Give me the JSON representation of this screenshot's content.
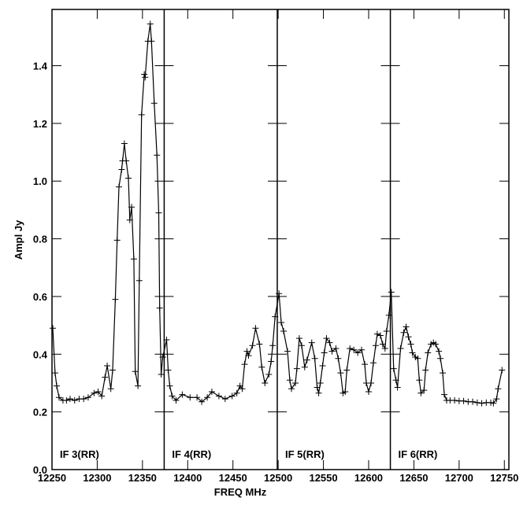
{
  "chart_data": {
    "type": "line",
    "title": "",
    "xlabel": "FREQ MHz",
    "ylabel": "Ampl Jy",
    "xlim": [
      12250,
      12755
    ],
    "ylim": [
      0,
      1.595
    ],
    "xticks": [
      12250,
      12300,
      12350,
      12400,
      12450,
      12500,
      12550,
      12600,
      12650,
      12700,
      12750
    ],
    "xtick_labels": [
      "12250",
      "12300",
      "12350",
      "12400",
      "12450",
      "12500",
      "12550",
      "12600",
      "12650",
      "12700",
      "12750"
    ],
    "yticks": [
      0,
      0.2,
      0.4,
      0.6,
      0.8,
      1.0,
      1.2,
      1.4
    ],
    "ytick_labels": [
      "0.0",
      "0.2",
      "0.4",
      "0.6",
      "0.8",
      "1.0",
      "1.2",
      "1.4"
    ],
    "grid": false,
    "panel_boundaries": [
      12374,
      12499,
      12624
    ],
    "panels": [
      {
        "label": "IF 3(RR)",
        "start": 12250
      },
      {
        "label": "IF 4(RR)",
        "start": 12374
      },
      {
        "label": "IF 5(RR)",
        "start": 12499
      },
      {
        "label": "IF 6(RR)",
        "start": 12624
      }
    ],
    "series": [
      {
        "name": "RR",
        "x": [
          12250.9,
          12253.4,
          12255.2,
          12257.8,
          12262.1,
          12266,
          12270,
          12275,
          12280,
          12285,
          12290,
          12296.5,
          12301,
          12305,
          12308.6,
          12311,
          12315,
          12317,
          12320,
          12322,
          12324,
          12327,
          12328,
          12330,
          12332,
          12334.5,
          12336,
          12338,
          12340.5,
          12342,
          12345,
          12346.5,
          12349,
          12352,
          12353,
          12356,
          12358.6,
          12360,
          12363,
          12366,
          12368,
          12369,
          12370.7,
          12372.4,
          12376.7,
          12378.4,
          12380.2,
          12382.8,
          12387.1,
          12394.0,
          12402.6,
          12410.3,
          12415.5,
          12421.6,
          12426.7,
          12434.5,
          12441.4,
          12449.1,
          12454.3,
          12457.8,
          12460.3,
          12462.9,
          12465.5,
          12467.2,
          12471.6,
          12475.0,
          12479.3,
          12481.9,
          12485.3,
          12489.7,
          12492.2,
          12494.0,
          12496.6,
          12500.9,
          12503.4,
          12506.0,
          12510.3,
          12512.9,
          12514.7,
          12519.0,
          12520.7,
          12523.3,
          12525.9,
          12529.3,
          12531.9,
          12537.1,
          12540.5,
          12543.1,
          12544.8,
          12546.6,
          12549.1,
          12550.9,
          12553.4,
          12556.9,
          12559.5,
          12563.8,
          12566.4,
          12569.0,
          12571.6,
          12574.1,
          12575.9,
          12579.3,
          12583.6,
          12587.9,
          12592.2,
          12595.7,
          12597.4,
          12600.0,
          12602.6,
          12605.2,
          12607.8,
          12609.5,
          12613.0,
          12615.5,
          12618.1,
          12619.8,
          12622.4,
          12625.0,
          12627.6,
          12630.2,
          12631.9,
          12635.3,
          12638.8,
          12641.4,
          12644.0,
          12646.6,
          12648.3,
          12651.7,
          12654.3,
          12656.0,
          12657.8,
          12661.2,
          12662.9,
          12665.5,
          12669.0,
          12671.6,
          12674.1,
          12677.6,
          12679.3,
          12681.9,
          12683.6,
          12686.2,
          12690,
          12695,
          12700,
          12705,
          12710,
          12715,
          12720,
          12725,
          12730,
          12735,
          12737.9,
          12741.4,
          12743.1,
          12747.4
        ],
        "y": [
          0.49,
          0.335,
          0.29,
          0.25,
          0.24,
          0.24,
          0.245,
          0.24,
          0.245,
          0.245,
          0.25,
          0.265,
          0.27,
          0.255,
          0.32,
          0.36,
          0.28,
          0.345,
          0.59,
          0.795,
          0.98,
          1.04,
          1.07,
          1.13,
          1.07,
          1.01,
          0.865,
          0.91,
          0.73,
          0.34,
          0.29,
          0.655,
          1.23,
          1.37,
          1.36,
          1.485,
          1.545,
          1.485,
          1.27,
          1.09,
          0.89,
          0.56,
          0.33,
          0.39,
          0.45,
          0.345,
          0.29,
          0.255,
          0.24,
          0.26,
          0.25,
          0.25,
          0.235,
          0.25,
          0.27,
          0.255,
          0.245,
          0.255,
          0.265,
          0.29,
          0.28,
          0.365,
          0.41,
          0.395,
          0.43,
          0.49,
          0.435,
          0.355,
          0.3,
          0.33,
          0.375,
          0.43,
          0.53,
          0.61,
          0.51,
          0.48,
          0.41,
          0.31,
          0.28,
          0.3,
          0.35,
          0.455,
          0.43,
          0.355,
          0.38,
          0.44,
          0.385,
          0.285,
          0.265,
          0.3,
          0.36,
          0.405,
          0.455,
          0.44,
          0.41,
          0.42,
          0.385,
          0.335,
          0.265,
          0.27,
          0.345,
          0.42,
          0.415,
          0.405,
          0.415,
          0.365,
          0.3,
          0.27,
          0.3,
          0.37,
          0.43,
          0.47,
          0.465,
          0.435,
          0.42,
          0.48,
          0.535,
          0.615,
          0.35,
          0.31,
          0.285,
          0.42,
          0.475,
          0.495,
          0.46,
          0.435,
          0.405,
          0.39,
          0.385,
          0.31,
          0.265,
          0.275,
          0.345,
          0.405,
          0.435,
          0.44,
          0.435,
          0.41,
          0.385,
          0.335,
          0.26,
          0.24,
          0.24,
          0.24,
          0.238,
          0.238,
          0.235,
          0.235,
          0.232,
          0.23,
          0.232,
          0.232,
          0.23,
          0.245,
          0.28,
          0.345
        ]
      }
    ]
  }
}
